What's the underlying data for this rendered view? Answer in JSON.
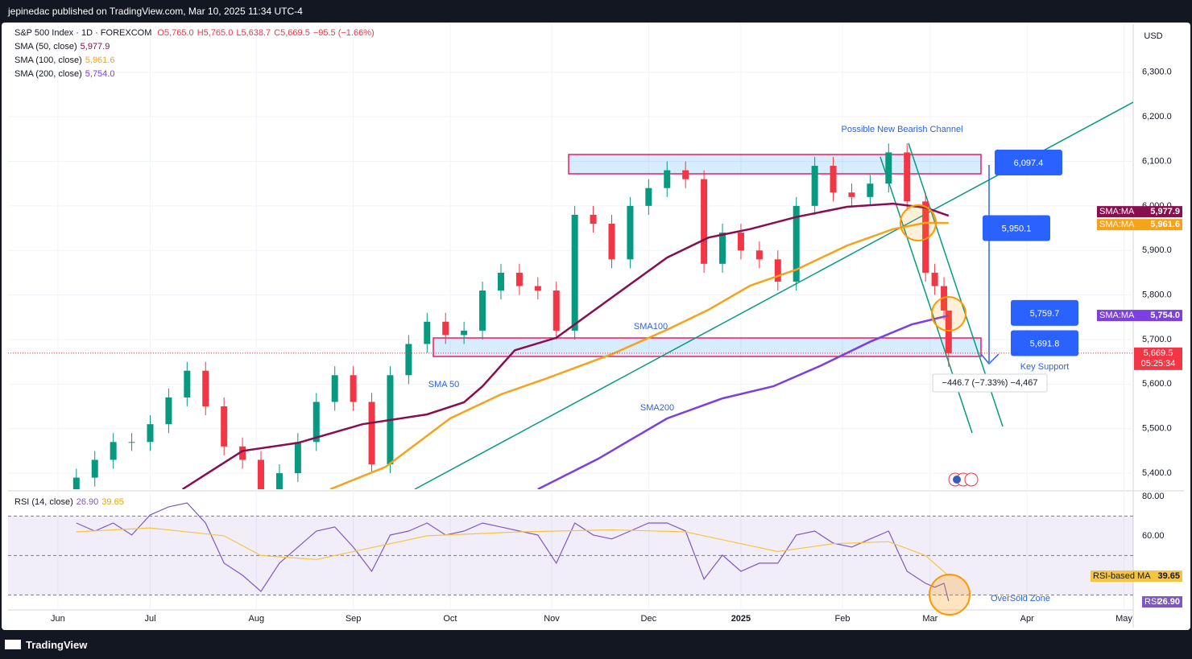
{
  "header": {
    "publisher": "jepinedac published on TradingView.com, Mar 10, 2025 11:34 UTC-4",
    "footer": "TradingView"
  },
  "chart_data": [
    {
      "type": "candlestick",
      "title": "S&P 500 Index · 1D · FOREXCOM",
      "ohlc_text": [
        "O5,765.0",
        "H5,765.0",
        "L5,638.7",
        "C5,669.5",
        "−95.5 (−1.66%)"
      ],
      "currency": "USD",
      "x": [
        4,
        8,
        12,
        16,
        20,
        24,
        28,
        32,
        36,
        40,
        44,
        48,
        52,
        56,
        60,
        64,
        68,
        72,
        76,
        80,
        84,
        88,
        92,
        96,
        100,
        104,
        108,
        112,
        116,
        120,
        124,
        128,
        132,
        136,
        140,
        144,
        148,
        152,
        156,
        160,
        164,
        168,
        172,
        176,
        180,
        184,
        188,
        190,
        192,
        193
      ],
      "open": [
        5350,
        5390,
        5430,
        5470,
        5470,
        5510,
        5570,
        5630,
        5550,
        5460,
        5430,
        5360,
        5400,
        5470,
        5560,
        5620,
        5560,
        5420,
        5620,
        5690,
        5740,
        5710,
        5720,
        5810,
        5850,
        5820,
        5810,
        5720,
        5980,
        5960,
        5880,
        6000,
        6040,
        6080,
        6060,
        5870,
        5940,
        5900,
        5880,
        5830,
        6000,
        6090,
        6030,
        6020,
        6050,
        6120,
        6010,
        5850,
        5820,
        5765
      ],
      "high": [
        5410,
        5450,
        5490,
        5490,
        5530,
        5590,
        5650,
        5650,
        5570,
        5480,
        5450,
        5420,
        5490,
        5580,
        5640,
        5640,
        5580,
        5640,
        5710,
        5760,
        5760,
        5740,
        5830,
        5870,
        5870,
        5840,
        5830,
        6000,
        6000,
        5980,
        6020,
        6060,
        6100,
        6100,
        6080,
        5960,
        5960,
        5920,
        5900,
        6020,
        6110,
        6110,
        6050,
        6070,
        6140,
        6140,
        6030,
        5870,
        5840,
        5765
      ],
      "low": [
        5330,
        5370,
        5410,
        5450,
        5450,
        5490,
        5550,
        5530,
        5440,
        5410,
        5340,
        5340,
        5380,
        5450,
        5540,
        5540,
        5400,
        5400,
        5600,
        5670,
        5690,
        5690,
        5700,
        5790,
        5800,
        5790,
        5700,
        5700,
        5940,
        5860,
        5860,
        5980,
        6020,
        6040,
        5850,
        5850,
        5880,
        5860,
        5810,
        5810,
        5980,
        6010,
        6000,
        6000,
        6030,
        5990,
        5830,
        5800,
        5745,
        5638.7
      ],
      "close": [
        5390,
        5430,
        5470,
        5470,
        5510,
        5570,
        5630,
        5550,
        5460,
        5430,
        5360,
        5400,
        5470,
        5560,
        5620,
        5560,
        5420,
        5620,
        5690,
        5740,
        5710,
        5720,
        5810,
        5850,
        5820,
        5810,
        5720,
        5980,
        5960,
        5880,
        6000,
        6040,
        6080,
        6060,
        5870,
        5940,
        5900,
        5880,
        5830,
        6000,
        6090,
        6030,
        6020,
        6050,
        6120,
        6010,
        5850,
        5820,
        5765,
        5669.5
      ],
      "up_color": "#089981",
      "down_color": "#f23645",
      "last_label": "5,669.5",
      "countdown": "05:25:34",
      "series": [
        {
          "name": "SMA (50, close)",
          "badge": "SMA:MA",
          "color": "#880e4f",
          "last_label": "5,977.9",
          "x": [
            27,
            40,
            52,
            66,
            80,
            88,
            92,
            99,
            108,
            120,
            132,
            141,
            150,
            160,
            171,
            181,
            188,
            193
          ],
          "values": [
            5364,
            5450,
            5468,
            5510,
            5532,
            5559,
            5595,
            5676,
            5704,
            5794,
            5884,
            5929,
            5948,
            5975,
            5998,
            6005,
            5996,
            5977.9
          ]
        },
        {
          "name": "SMA (100, close)",
          "badge": "SMA:MA",
          "color": "#f7a21b",
          "last_label": "5,961.6",
          "x": [
            59,
            71,
            85,
            96,
            106,
            120,
            132,
            141,
            150,
            160,
            171,
            181,
            188,
            193
          ],
          "values": [
            5364,
            5414,
            5523,
            5577,
            5613,
            5667,
            5722,
            5767,
            5821,
            5857,
            5911,
            5948,
            5962,
            5961.6
          ]
        },
        {
          "name": "SMA (200, close)",
          "badge": "SMA:MA",
          "color": "#7b3fe4",
          "last_label": "5,754.0",
          "x": [
            104,
            117,
            132,
            144,
            155,
            165,
            176,
            185,
            193
          ],
          "values": [
            5364,
            5432,
            5523,
            5568,
            5595,
            5640,
            5695,
            5734,
            5754
          ]
        }
      ],
      "xlim": [
        -10.8,
        233
      ],
      "ylim": [
        5364,
        6408
      ],
      "yticks": [
        {
          "value": 5400,
          "label": "5,400.0"
        },
        {
          "value": 5500,
          "label": "5,500.0"
        },
        {
          "value": 5600,
          "label": "5,600.0"
        },
        {
          "value": 5700,
          "label": "5,700.0"
        },
        {
          "value": 5800,
          "label": "5,800.0"
        },
        {
          "value": 5900,
          "label": "5,900.0"
        },
        {
          "value": 6000,
          "label": "6,000.0"
        },
        {
          "value": 6100,
          "label": "6,100.0"
        },
        {
          "value": 6200,
          "label": "6,200.0"
        },
        {
          "value": 6300,
          "label": "6,300.0"
        }
      ],
      "xticks": [
        {
          "value": 0,
          "label": "Jun"
        },
        {
          "value": 20,
          "label": "Jul"
        },
        {
          "value": 43,
          "label": "Aug"
        },
        {
          "value": 64,
          "label": "Sep"
        },
        {
          "value": 85,
          "label": "Oct"
        },
        {
          "value": 107,
          "label": "Nov"
        },
        {
          "value": 128,
          "label": "Dec"
        },
        {
          "value": 148,
          "label": "2025"
        },
        {
          "value": 170,
          "label": "Feb"
        },
        {
          "value": 189,
          "label": "Mar"
        },
        {
          "value": 210,
          "label": "Apr"
        },
        {
          "value": 231,
          "label": "May"
        }
      ],
      "grid": true,
      "annotations": [
        "Possible New Bearish Channel",
        "SMA100",
        "SMA 50",
        "SMA200",
        "Key Support",
        "OverSold Zone"
      ],
      "price_labels": [
        {
          "value": 6097.4,
          "label": "6,097.4"
        },
        {
          "value": 5950.1,
          "label": "5,950.1"
        },
        {
          "value": 5759.7,
          "label": "5,759.7"
        },
        {
          "value": 5691.8,
          "label": "5,691.8"
        }
      ],
      "measure": "−446.7 (−7.33%) −4,467"
    },
    {
      "type": "line",
      "title": "RSI (14, close)",
      "series": [
        {
          "name": "RSI",
          "color": "#7e57c2",
          "last_label": "26.90",
          "x": [
            4,
            8,
            12,
            16,
            20,
            24,
            28,
            32,
            36,
            40,
            44,
            48,
            52,
            56,
            60,
            64,
            68,
            72,
            76,
            80,
            84,
            88,
            92,
            96,
            100,
            104,
            108,
            112,
            116,
            120,
            124,
            128,
            132,
            136,
            140,
            144,
            148,
            152,
            156,
            160,
            164,
            168,
            172,
            176,
            180,
            184,
            188,
            190,
            192,
            193
          ],
          "values": [
            66.5,
            62.4,
            66.5,
            60.4,
            70.6,
            74.7,
            76.7,
            66.5,
            46.1,
            40,
            31.8,
            46.1,
            54.3,
            62.4,
            64.5,
            54.3,
            42,
            60.4,
            62.4,
            66.5,
            60.4,
            62.4,
            66.5,
            64.5,
            62.4,
            60.4,
            46.1,
            66.5,
            60.4,
            58.4,
            62.4,
            66.5,
            66.5,
            62.4,
            38,
            50.2,
            42,
            46.1,
            46.1,
            60.4,
            62.4,
            56.3,
            54.3,
            58.4,
            62.4,
            42,
            35.9,
            33.9,
            35.9,
            26.9
          ]
        },
        {
          "name": "RSI-based MA",
          "color": "#f5c542",
          "last_label": "39.65",
          "x": [
            4,
            20,
            36,
            44,
            56,
            68,
            80,
            100,
            120,
            136,
            144,
            156,
            168,
            180,
            188,
            193
          ],
          "values": [
            62,
            64,
            60,
            50,
            48,
            54,
            60,
            62,
            63,
            62,
            58,
            52,
            56,
            57,
            50,
            39.65
          ]
        }
      ],
      "ylim": [
        22.4,
        82
      ],
      "yticks": [
        {
          "value": 80,
          "label": "80.00"
        },
        {
          "value": 60,
          "label": "60.00"
        }
      ],
      "levels": [
        70,
        50,
        30
      ]
    }
  ]
}
